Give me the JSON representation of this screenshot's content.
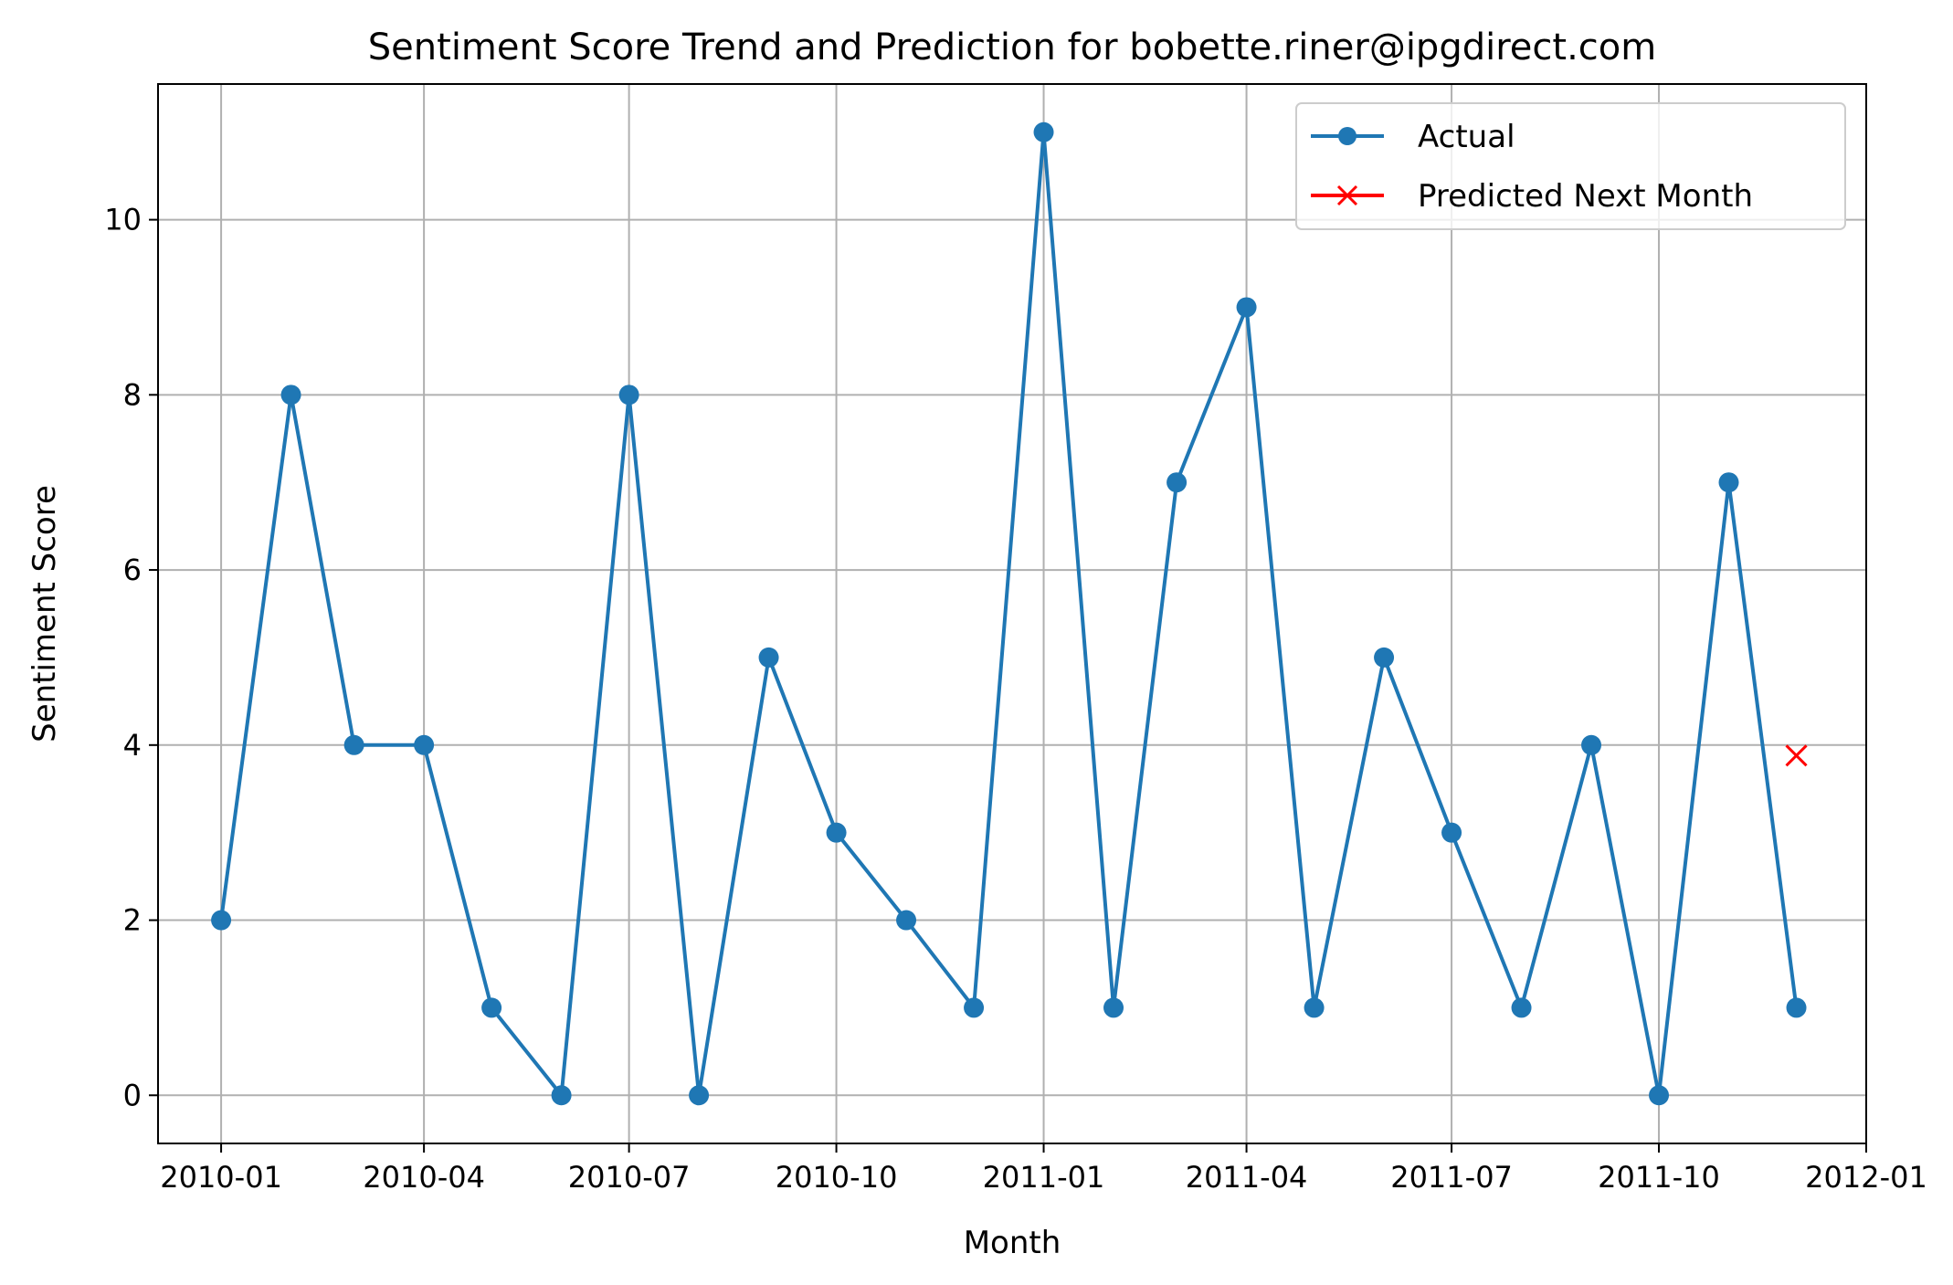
{
  "chart_data": {
    "type": "line",
    "title": "Sentiment Score Trend and Prediction for bobette.riner@ipgdirect.com",
    "xlabel": "Month",
    "ylabel": "Sentiment Score",
    "x_ticks": [
      "2010-01",
      "2010-04",
      "2010-07",
      "2010-10",
      "2011-01",
      "2011-04",
      "2011-07",
      "2011-10",
      "2012-01"
    ],
    "y_ticks": [
      "0",
      "2",
      "4",
      "6",
      "8",
      "10"
    ],
    "xlim": [
      "2009-12-04",
      "2012-01-01"
    ],
    "ylim": [
      -0.55,
      11.55
    ],
    "grid": true,
    "legend_position": "top-right",
    "series": [
      {
        "name": "Actual",
        "color": "#1f77b4",
        "marker": "circle",
        "x": [
          "2010-01",
          "2010-02",
          "2010-03",
          "2010-04",
          "2010-05",
          "2010-06",
          "2010-07",
          "2010-08",
          "2010-09",
          "2010-10",
          "2010-11",
          "2010-12",
          "2011-01",
          "2011-02",
          "2011-03",
          "2011-04",
          "2011-05",
          "2011-06",
          "2011-07",
          "2011-08",
          "2011-09",
          "2011-10",
          "2011-11",
          "2011-12"
        ],
        "values": [
          2,
          8,
          4,
          4,
          1,
          0,
          8,
          0,
          5,
          3,
          2,
          1,
          11,
          1,
          7,
          9,
          1,
          5,
          3,
          1,
          4,
          0,
          7,
          1
        ]
      },
      {
        "name": "Predicted Next Month",
        "color": "#ff0000",
        "marker": "x",
        "x": [
          "2011-12"
        ],
        "values": [
          3.88
        ]
      }
    ]
  }
}
